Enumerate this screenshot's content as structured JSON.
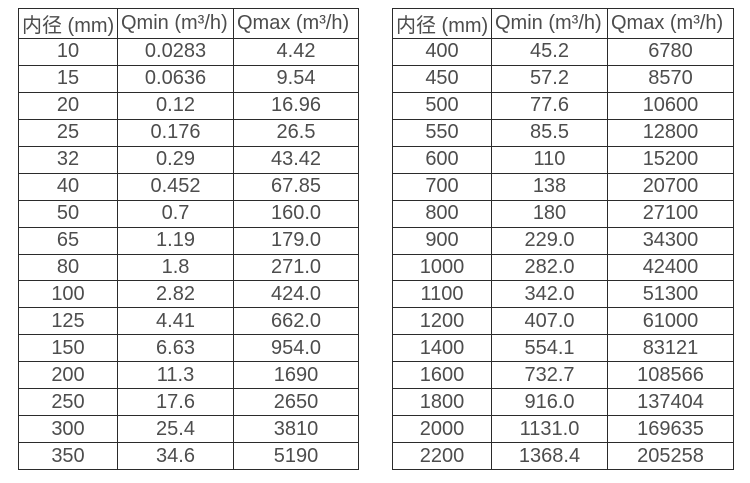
{
  "headers": {
    "diameter": "内径 (mm)",
    "qmin": "Qmin (m³/h)",
    "qmax": "Qmax (m³/h)"
  },
  "left_table": {
    "rows": [
      [
        "10",
        "0.0283",
        "4.42"
      ],
      [
        "15",
        "0.0636",
        "9.54"
      ],
      [
        "20",
        "0.12",
        "16.96"
      ],
      [
        "25",
        "0.176",
        "26.5"
      ],
      [
        "32",
        "0.29",
        "43.42"
      ],
      [
        "40",
        "0.452",
        "67.85"
      ],
      [
        "50",
        "0.7",
        "160.0"
      ],
      [
        "65",
        "1.19",
        "179.0"
      ],
      [
        "80",
        "1.8",
        "271.0"
      ],
      [
        "100",
        "2.82",
        "424.0"
      ],
      [
        "125",
        "4.41",
        "662.0"
      ],
      [
        "150",
        "6.63",
        "954.0"
      ],
      [
        "200",
        "11.3",
        "1690"
      ],
      [
        "250",
        "17.6",
        "2650"
      ],
      [
        "300",
        "25.4",
        "3810"
      ],
      [
        "350",
        "34.6",
        "5190"
      ]
    ]
  },
  "right_table": {
    "rows": [
      [
        "400",
        "45.2",
        "6780"
      ],
      [
        "450",
        "57.2",
        "8570"
      ],
      [
        "500",
        "77.6",
        "10600"
      ],
      [
        "550",
        "85.5",
        "12800"
      ],
      [
        "600",
        "110",
        "15200"
      ],
      [
        "700",
        "138",
        "20700"
      ],
      [
        "800",
        "180",
        "27100"
      ],
      [
        "900",
        "229.0",
        "34300"
      ],
      [
        "1000",
        "282.0",
        "42400"
      ],
      [
        "1100",
        "342.0",
        "51300"
      ],
      [
        "1200",
        "407.0",
        "61000"
      ],
      [
        "1400",
        "554.1",
        "83121"
      ],
      [
        "1600",
        "732.7",
        "108566"
      ],
      [
        "1800",
        "916.0",
        "137404"
      ],
      [
        "2000",
        "1131.0",
        "169635"
      ],
      [
        "2200",
        "1368.4",
        "205258"
      ]
    ]
  },
  "colors": {
    "border": "#2b2b2b",
    "text": "#4d4d4d",
    "background": "#ffffff"
  }
}
